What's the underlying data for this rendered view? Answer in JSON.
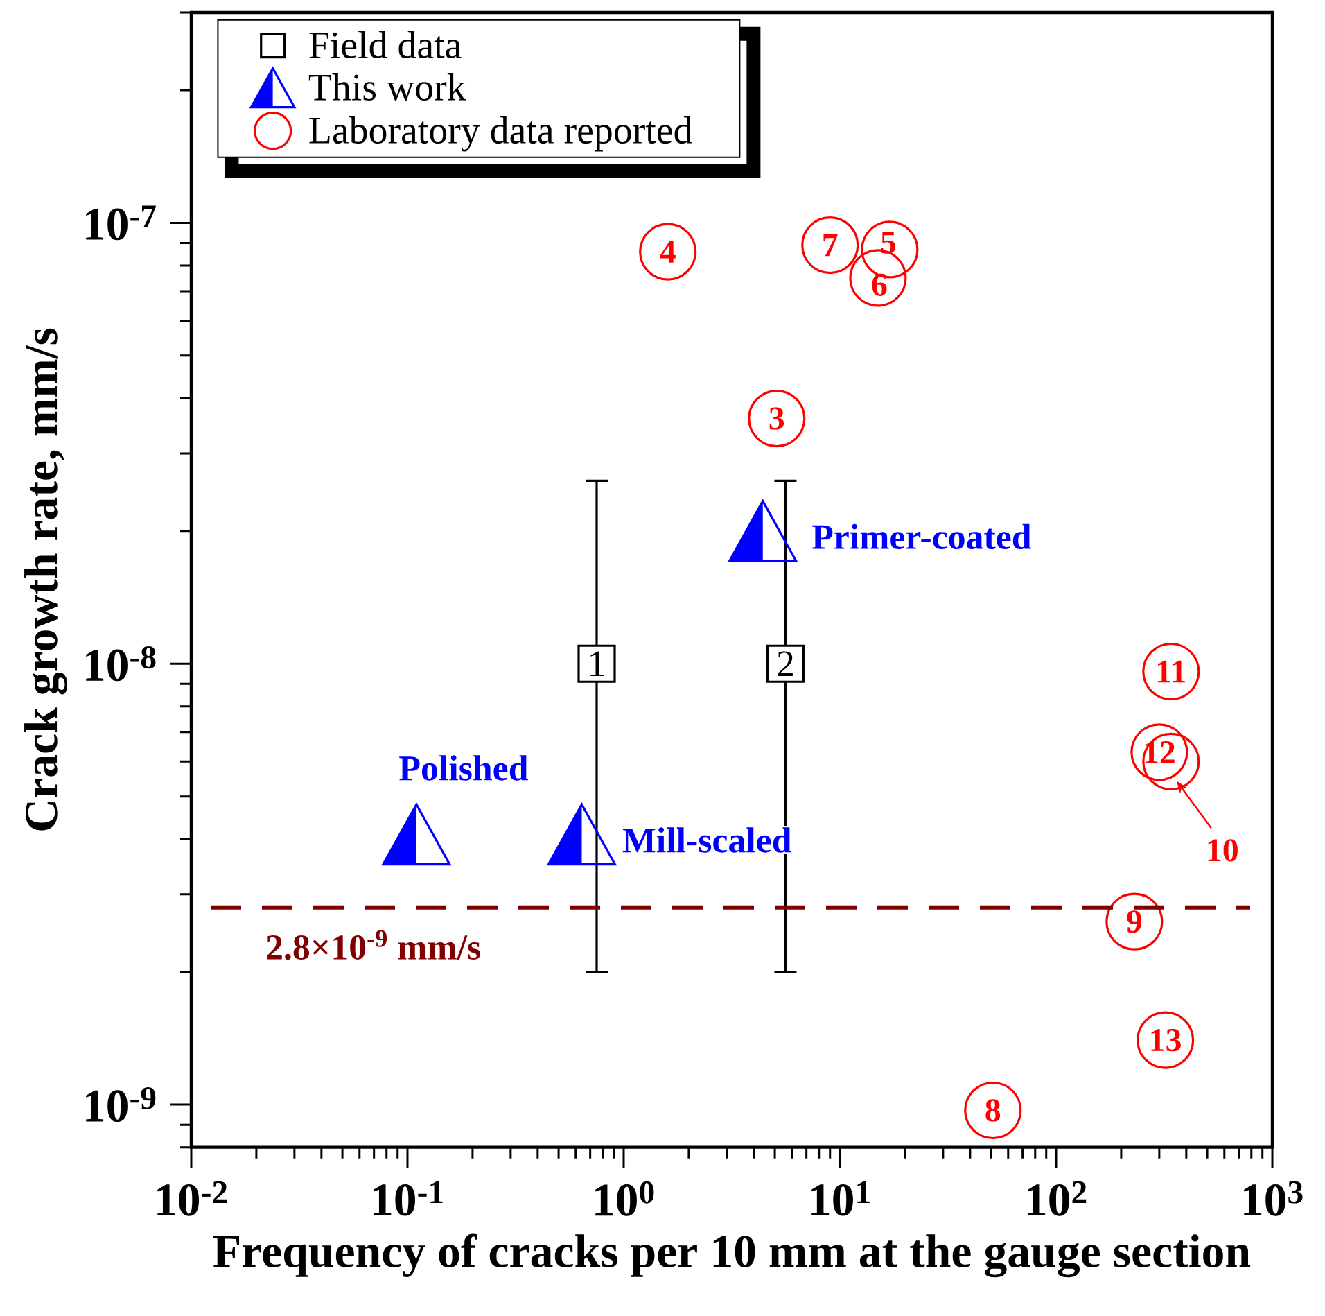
{
  "chart_data": {
    "type": "scatter",
    "xlabel": "Frequency of cracks per 10 mm at the gauge section",
    "ylabel": "Crack growth rate, mm/s",
    "log": "xy",
    "xlim": [
      0.01,
      1000
    ],
    "ylim": [
      8e-10,
      3e-07
    ],
    "xticks": [
      {
        "value": 0.01,
        "label": "10$^{-2}$"
      },
      {
        "value": 0.1,
        "label": "10$^{-1}$"
      },
      {
        "value": 1,
        "label": "10$^{0}$"
      },
      {
        "value": 10,
        "label": "10$^{1}$"
      },
      {
        "value": 100,
        "label": "10$^{2}$"
      },
      {
        "value": 1000,
        "label": "10$^{3}$"
      }
    ],
    "yticks": [
      {
        "value": 1e-09,
        "label": "10$^{-9}$"
      },
      {
        "value": 1e-08,
        "label": "10$^{-8}$"
      },
      {
        "value": 1e-07,
        "label": "10$^{-7}$"
      }
    ],
    "legend": "top left",
    "series": [
      {
        "name": "Field data",
        "color": "#000000",
        "marker": "square",
        "x": [
          0.75,
          5.6
        ],
        "values": [
          1e-08,
          1e-08
        ],
        "errors": [
          [
            2e-09,
            2.6e-08
          ],
          [
            2e-09,
            2.6e-08
          ]
        ]
      },
      {
        "name": "This work",
        "color": "#0000ff",
        "marker": "triangle",
        "x": [
          0.11,
          0.64,
          4.4
        ],
        "values": [
          4.1e-09,
          4.1e-09,
          2e-08
        ]
      },
      {
        "name": "Laboratory data reported",
        "color": "#ff0000",
        "marker": "circle",
        "x": [
          5.1,
          1.6,
          17,
          15,
          9.0,
          51,
          230,
          340,
          300,
          340,
          320
        ],
        "values": [
          3.6e-08,
          8.6e-08,
          8.7e-08,
          7.5e-08,
          8.9e-08,
          9.7e-10,
          2.6e-09,
          6e-09,
          6.3e-09,
          9.6e-09,
          1.4e-09
        ]
      }
    ],
    "ref_lines": [
      {
        "axis": "y",
        "value": 2.8e-09,
        "label": "2.8×10$^{-9}$ mm/s",
        "color": "#800000",
        "line_style": "dashed"
      }
    ],
    "annotations": [
      {
        "text": "1",
        "x": 0.75,
        "y": 1e-08
      },
      {
        "text": "2",
        "x": 5.6,
        "y": 1e-08
      },
      {
        "text": "Polished",
        "x": 0.11,
        "y": 4.1e-09
      },
      {
        "text": "Mill-scaled",
        "x": 0.64,
        "y": 4.1e-09
      },
      {
        "text": "Primer-coated",
        "x": 4.4,
        "y": 2e-08
      },
      {
        "text": "3",
        "x": 5.1,
        "y": 3.6e-08
      },
      {
        "text": "4",
        "x": 1.6,
        "y": 8.6e-08
      },
      {
        "text": "5",
        "x": 17,
        "y": 8.7e-08
      },
      {
        "text": "6",
        "x": 15,
        "y": 7.5e-08
      },
      {
        "text": "7",
        "x": 9.0,
        "y": 8.9e-08
      },
      {
        "text": "8",
        "x": 51,
        "y": 9.7e-10
      },
      {
        "text": "9",
        "x": 230,
        "y": 2.6e-09
      },
      {
        "text": "10",
        "x": 340,
        "y": 6e-09
      },
      {
        "text": "11",
        "x": 340,
        "y": 9.6e-09
      },
      {
        "text": "12",
        "x": 300,
        "y": 6.3e-09
      },
      {
        "text": "13",
        "x": 320,
        "y": 1.4e-09
      }
    ]
  }
}
